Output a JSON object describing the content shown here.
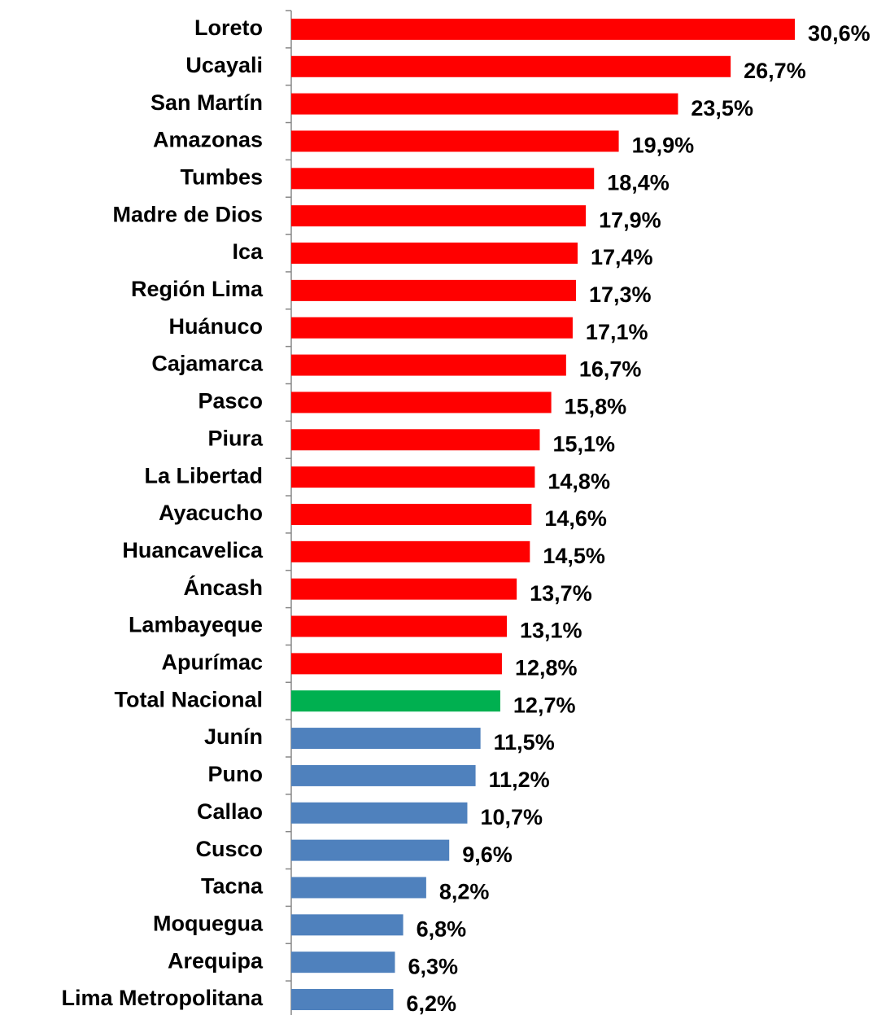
{
  "chart_data": {
    "type": "hbar",
    "categories": [
      "Loreto",
      "Ucayali",
      "San Martín",
      "Amazonas",
      "Tumbes",
      "Madre de Dios",
      "Ica",
      "Región Lima",
      "Huánuco",
      "Cajamarca",
      "Pasco",
      "Piura",
      "La Libertad",
      "Ayacucho",
      "Huancavelica",
      "Áncash",
      "Lambayeque",
      "Apurímac",
      "Total Nacional",
      "Junín",
      "Puno",
      "Callao",
      "Cusco",
      "Tacna",
      "Moquegua",
      "Arequipa",
      "Lima Metropolitana"
    ],
    "values": [
      30.6,
      26.7,
      23.5,
      19.9,
      18.4,
      17.9,
      17.4,
      17.3,
      17.1,
      16.7,
      15.8,
      15.1,
      14.8,
      14.6,
      14.5,
      13.7,
      13.1,
      12.8,
      12.7,
      11.5,
      11.2,
      10.7,
      9.6,
      8.2,
      6.8,
      6.3,
      6.2
    ],
    "value_labels": [
      "30,6%",
      "26,7%",
      "23,5%",
      "19,9%",
      "18,4%",
      "17,9%",
      "17,4%",
      "17,3%",
      "17,1%",
      "16,7%",
      "15,8%",
      "15,1%",
      "14,8%",
      "14,6%",
      "14,5%",
      "13,7%",
      "13,1%",
      "12,8%",
      "12,7%",
      "11,5%",
      "11,2%",
      "10,7%",
      "9,6%",
      "8,2%",
      "6,8%",
      "6,3%",
      "6,2%"
    ],
    "colors": [
      "#ff0000",
      "#ff0000",
      "#ff0000",
      "#ff0000",
      "#ff0000",
      "#ff0000",
      "#ff0000",
      "#ff0000",
      "#ff0000",
      "#ff0000",
      "#ff0000",
      "#ff0000",
      "#ff0000",
      "#ff0000",
      "#ff0000",
      "#ff0000",
      "#ff0000",
      "#ff0000",
      "#00b050",
      "#4f81bd",
      "#4f81bd",
      "#4f81bd",
      "#4f81bd",
      "#4f81bd",
      "#4f81bd",
      "#4f81bd",
      "#4f81bd"
    ],
    "xlim": [
      0,
      36
    ]
  }
}
